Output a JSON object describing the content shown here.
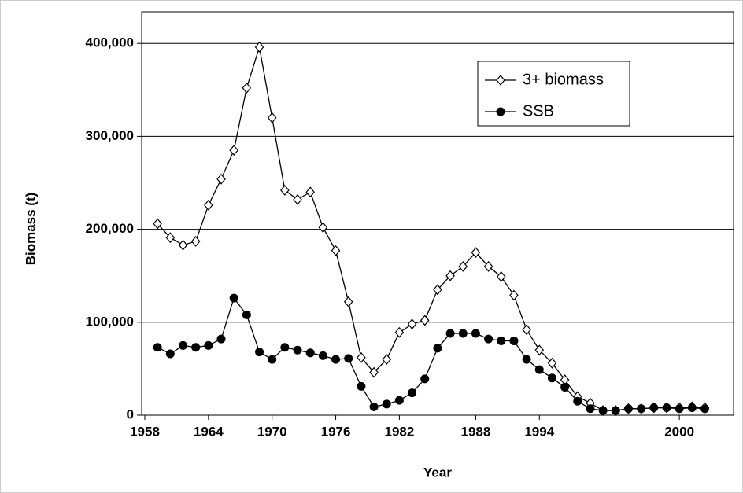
{
  "chart_data": {
    "type": "line",
    "y_label": "Biomass (t)",
    "x_label": "Year",
    "categories": [
      "1958",
      null,
      null,
      null,
      null,
      "1964",
      null,
      null,
      null,
      null,
      "1970",
      null,
      null,
      null,
      null,
      "1976",
      null,
      null,
      null,
      null,
      "1982",
      null,
      null,
      null,
      null,
      null,
      "1988",
      null,
      null,
      null,
      null,
      "1994",
      null,
      null,
      null,
      null,
      null,
      null,
      null,
      null,
      null,
      null,
      "2000",
      null,
      null
    ],
    "series": [
      {
        "name": "3+ biomass",
        "color": "#000000",
        "marker": "diamond",
        "values": [
          null,
          206000,
          191000,
          183000,
          187000,
          226000,
          254000,
          285000,
          352000,
          396000,
          320000,
          242000,
          232000,
          240000,
          202000,
          177000,
          122000,
          62000,
          46000,
          60000,
          89000,
          98000,
          102000,
          135000,
          150000,
          160000,
          175000,
          160000,
          149000,
          129000,
          92000,
          70000,
          56000,
          38000,
          20000,
          13000,
          5000,
          5000,
          7000,
          7000,
          8000,
          8000,
          8000,
          9000,
          8000
        ]
      },
      {
        "name": "SSB",
        "color": "#000000",
        "marker": "circle",
        "values": [
          null,
          73000,
          66000,
          75000,
          73000,
          75000,
          82000,
          126000,
          108000,
          68000,
          60000,
          73000,
          70000,
          67000,
          64000,
          60000,
          61000,
          31000,
          9000,
          12000,
          16000,
          24000,
          39000,
          72000,
          88000,
          88000,
          88000,
          82000,
          80000,
          80000,
          60000,
          49000,
          40000,
          30000,
          15000,
          7000,
          5000,
          5000,
          7000,
          7000,
          8000,
          8000,
          7000,
          8000,
          7000
        ]
      }
    ],
    "ylim": [
      0,
      434000
    ],
    "yticks": [
      0,
      {
        "value": 100000,
        "label": "100,000"
      },
      {
        "value": 200000,
        "label": "200,000"
      },
      {
        "value": 300000,
        "label": "300,000"
      },
      {
        "value": 400000,
        "label": "400,000"
      }
    ],
    "grid": true,
    "legend": "top-right"
  }
}
